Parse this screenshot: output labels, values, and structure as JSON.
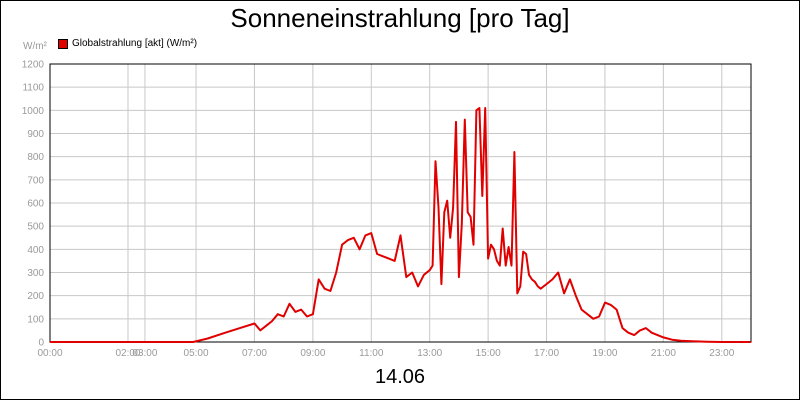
{
  "title": "Sonneneinstrahlung [pro Tag]",
  "subtitle": "14.06",
  "unit_label": "W/m²",
  "legend": {
    "label": "Globalstrahlung [akt] (W/m²)",
    "color": "#e00000"
  },
  "chart_data": {
    "type": "line",
    "title": "Sonneneinstrahlung [pro Tag]",
    "xlabel": "",
    "ylabel": "W/m²",
    "ylim": [
      0,
      1200
    ],
    "xlim": [
      0,
      24
    ],
    "grid": true,
    "legend_position": "top-left",
    "y_ticks": [
      0,
      100,
      200,
      300,
      400,
      500,
      600,
      700,
      800,
      900,
      1000,
      1100,
      1200
    ],
    "x_ticks": [
      {
        "h": 0,
        "label": "00:00"
      },
      {
        "h": 2.67,
        "label": "02:00"
      },
      {
        "h": 3.25,
        "label": "03:00"
      },
      {
        "h": 5.0,
        "label": "05:00"
      },
      {
        "h": 7.0,
        "label": "07:00"
      },
      {
        "h": 9.0,
        "label": "09:00"
      },
      {
        "h": 11.0,
        "label": "11:00"
      },
      {
        "h": 13.0,
        "label": "13:00"
      },
      {
        "h": 15.0,
        "label": "15:00"
      },
      {
        "h": 17.0,
        "label": "17:00"
      },
      {
        "h": 19.0,
        "label": "19:00"
      },
      {
        "h": 21.0,
        "label": "21:00"
      },
      {
        "h": 23.0,
        "label": "23:00"
      }
    ],
    "series": [
      {
        "name": "Globalstrahlung [akt] (W/m²)",
        "color": "#e00000",
        "x": [
          0,
          4.9,
          5.4,
          6.0,
          6.5,
          7.0,
          7.2,
          7.4,
          7.6,
          7.8,
          8.0,
          8.2,
          8.4,
          8.6,
          8.8,
          9.0,
          9.2,
          9.4,
          9.6,
          9.8,
          10.0,
          10.2,
          10.4,
          10.6,
          10.8,
          11.0,
          11.2,
          11.4,
          11.6,
          11.8,
          12.0,
          12.2,
          12.4,
          12.6,
          12.8,
          13.0,
          13.1,
          13.2,
          13.3,
          13.4,
          13.5,
          13.6,
          13.7,
          13.8,
          13.9,
          14.0,
          14.1,
          14.2,
          14.3,
          14.4,
          14.5,
          14.6,
          14.7,
          14.8,
          14.9,
          15.0,
          15.1,
          15.2,
          15.3,
          15.4,
          15.5,
          15.6,
          15.7,
          15.8,
          15.9,
          16.0,
          16.1,
          16.2,
          16.3,
          16.4,
          16.5,
          16.6,
          16.7,
          16.8,
          16.9,
          17.0,
          17.2,
          17.4,
          17.6,
          17.8,
          18.0,
          18.2,
          18.4,
          18.6,
          18.8,
          19.0,
          19.2,
          19.4,
          19.6,
          19.8,
          20.0,
          20.2,
          20.4,
          20.6,
          20.8,
          21.0,
          21.3,
          21.6,
          22.0,
          22.5,
          23.0,
          24.0
        ],
        "values": [
          0,
          0,
          15,
          40,
          60,
          80,
          50,
          70,
          90,
          120,
          110,
          165,
          130,
          140,
          110,
          120,
          270,
          230,
          220,
          300,
          420,
          440,
          450,
          400,
          460,
          470,
          380,
          370,
          360,
          350,
          460,
          280,
          300,
          240,
          290,
          310,
          330,
          780,
          580,
          250,
          560,
          610,
          450,
          580,
          950,
          280,
          510,
          960,
          560,
          540,
          420,
          1000,
          1010,
          630,
          1010,
          360,
          420,
          400,
          350,
          330,
          490,
          330,
          410,
          330,
          820,
          210,
          240,
          390,
          380,
          290,
          270,
          260,
          240,
          230,
          240,
          250,
          270,
          300,
          210,
          270,
          200,
          140,
          120,
          100,
          110,
          170,
          160,
          140,
          60,
          40,
          30,
          50,
          60,
          40,
          30,
          20,
          10,
          5,
          3,
          1,
          0,
          0
        ]
      }
    ]
  }
}
